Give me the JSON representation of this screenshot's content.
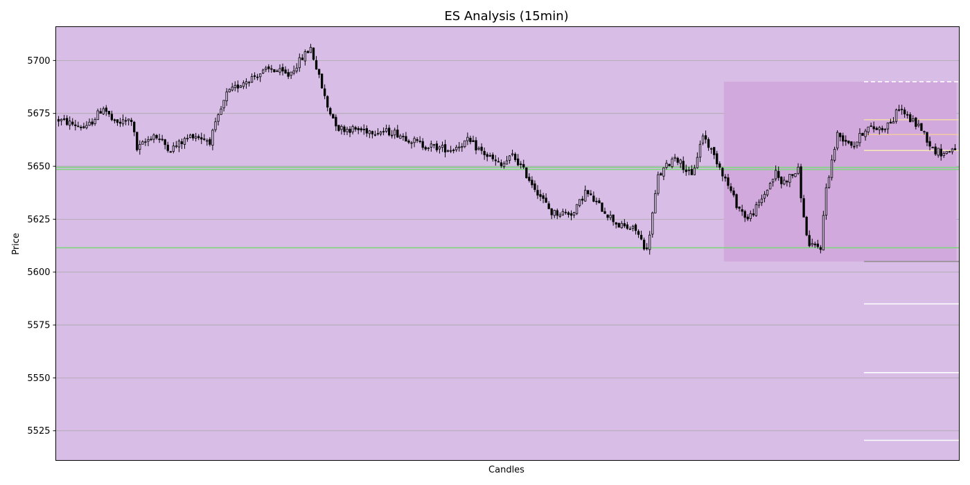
{
  "chart_data": {
    "type": "candlestick",
    "title": "ES Analysis (15min)",
    "xlabel": "Candles",
    "ylabel": "Price",
    "ylim": [
      5511,
      5716
    ],
    "yticks": [
      5525,
      5550,
      5575,
      5600,
      5625,
      5650,
      5675,
      5700
    ],
    "grid": true,
    "colors": {
      "plot_background": "#d8bde6",
      "zone": "#d1a9dc",
      "grid": "#a9a9a9",
      "support_line": "#7ed67e",
      "candle_up_fill": "#d8bde6",
      "candle_down_fill": "#000000",
      "candle_edge": "#000000"
    },
    "candles_anchor": [
      [
        0,
        5672
      ],
      [
        10,
        5668
      ],
      [
        16,
        5678
      ],
      [
        20,
        5670
      ],
      [
        26,
        5672
      ],
      [
        28,
        5658
      ],
      [
        34,
        5665
      ],
      [
        40,
        5658
      ],
      [
        48,
        5665
      ],
      [
        54,
        5662
      ],
      [
        60,
        5684
      ],
      [
        66,
        5690
      ],
      [
        72,
        5694
      ],
      [
        76,
        5696
      ],
      [
        82,
        5693
      ],
      [
        88,
        5703
      ],
      [
        90,
        5706
      ],
      [
        96,
        5678
      ],
      [
        100,
        5668
      ],
      [
        120,
        5666
      ],
      [
        130,
        5660
      ],
      [
        140,
        5658
      ],
      [
        146,
        5662
      ],
      [
        150,
        5658
      ],
      [
        158,
        5650
      ],
      [
        162,
        5655
      ],
      [
        164,
        5652
      ],
      [
        170,
        5640
      ],
      [
        176,
        5628
      ],
      [
        184,
        5628
      ],
      [
        188,
        5638
      ],
      [
        194,
        5630
      ],
      [
        200,
        5622
      ],
      [
        206,
        5620
      ],
      [
        210,
        5610
      ],
      [
        214,
        5645
      ],
      [
        220,
        5655
      ],
      [
        226,
        5645
      ],
      [
        230,
        5665
      ],
      [
        236,
        5650
      ],
      [
        242,
        5632
      ],
      [
        246,
        5625
      ],
      [
        250,
        5632
      ],
      [
        256,
        5647
      ],
      [
        258,
        5642
      ],
      [
        264,
        5648
      ],
      [
        266,
        5625
      ],
      [
        268,
        5612
      ],
      [
        272,
        5612
      ],
      [
        274,
        5640
      ],
      [
        278,
        5665
      ],
      [
        284,
        5660
      ],
      [
        288,
        5668
      ],
      [
        294,
        5668
      ],
      [
        298,
        5672
      ],
      [
        300,
        5678
      ],
      [
        304,
        5672
      ],
      [
        308,
        5668
      ],
      [
        312,
        5658
      ],
      [
        316,
        5656
      ],
      [
        320,
        5659
      ]
    ],
    "candles_count": 321,
    "zone": {
      "x_start": 237.5,
      "x_end": 320.5,
      "y_low": 5605,
      "y_high": 5690
    },
    "horizontal_lines": [
      {
        "y": 5649.5,
        "color": "#7ed67e",
        "style": "solid",
        "x_start": -1,
        "x_end": 321.5
      },
      {
        "y": 5648.5,
        "color": "#7ed67e",
        "style": "solid",
        "x_start": -1,
        "x_end": 321.5
      },
      {
        "y": 5611.5,
        "color": "#7ed67e",
        "style": "solid",
        "x_start": -1,
        "x_end": 321.5
      },
      {
        "y": 5690,
        "color": "#ffffff",
        "style": "dashed",
        "x_start": 287.5,
        "x_end": 321.5
      },
      {
        "y": 5672,
        "color": "#f0d8b0",
        "style": "solid",
        "x_start": 287.5,
        "x_end": 321.5
      },
      {
        "y": 5665,
        "color": "#f0c8a8",
        "style": "solid",
        "x_start": 287.5,
        "x_end": 321.5
      },
      {
        "y": 5657.5,
        "color": "#f5e8b8",
        "style": "solid",
        "x_start": 287.5,
        "x_end": 321.5
      },
      {
        "y": 5605,
        "color": "#909090",
        "style": "solid",
        "x_start": 287.5,
        "x_end": 321.5
      },
      {
        "y": 5585,
        "color": "#ffffff",
        "style": "solid",
        "x_start": 287.5,
        "x_end": 321.5
      },
      {
        "y": 5552.5,
        "color": "#ffffff",
        "style": "solid",
        "x_start": 287.5,
        "x_end": 321.5
      },
      {
        "y": 5520.5,
        "color": "#ffffff",
        "style": "solid",
        "x_start": 287.5,
        "x_end": 321.5
      }
    ]
  }
}
